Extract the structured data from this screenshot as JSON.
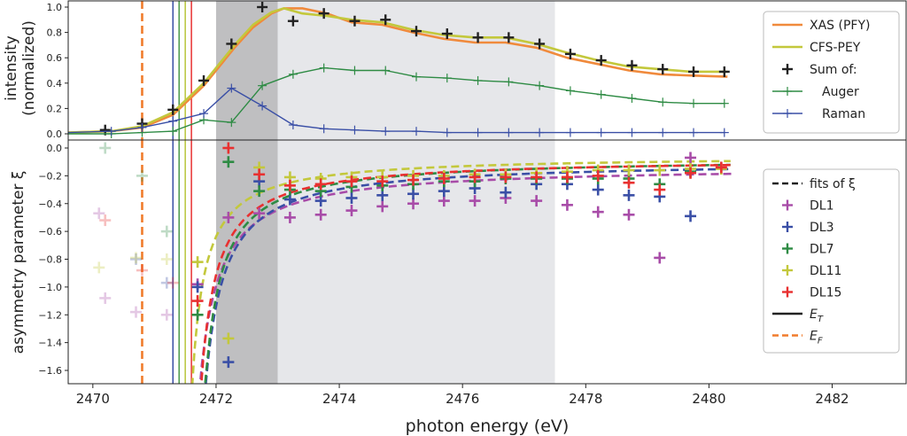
{
  "chart_data": [
    {
      "type": "line",
      "panel": "top",
      "ylabel_line1": "intensity",
      "ylabel_line2": "(normalized)",
      "xlim": [
        2469.6,
        2483.2
      ],
      "ylim": [
        0,
        1.02
      ],
      "yticks": [
        "0.0",
        "0.2",
        "0.4",
        "0.6",
        "0.8",
        "1.0"
      ],
      "ytick_values": [
        0,
        0.2,
        0.4,
        0.6,
        0.8,
        1.0
      ],
      "shaded_regions": [
        {
          "x0": 2472.0,
          "x1": 2473.0,
          "color": "#b4b4b6",
          "opacity": 0.85
        },
        {
          "x0": 2473.0,
          "x1": 2477.5,
          "color": "#e6e7ea",
          "opacity": 1
        }
      ],
      "vlines": [
        {
          "x": 2470.8,
          "color": "#f07c2c",
          "style": "dashed"
        },
        {
          "x": 2471.3,
          "color": "#3a4fa6",
          "style": "solid"
        },
        {
          "x": 2471.4,
          "color": "#4a9a4a",
          "style": "solid"
        },
        {
          "x": 2471.5,
          "color": "#b8c43a",
          "style": "solid"
        },
        {
          "x": 2471.6,
          "color": "#e83030",
          "style": "solid"
        }
      ],
      "series": [
        {
          "name": "XAS (PFY)",
          "color": "#f08a3c",
          "style": "line",
          "x": [
            2469.6,
            2470.3,
            2470.8,
            2471.3,
            2471.8,
            2472.3,
            2472.6,
            2472.9,
            2473.1,
            2473.4,
            2473.8,
            2474.2,
            2474.7,
            2475.2,
            2475.7,
            2476.2,
            2476.7,
            2477.2,
            2477.7,
            2478.2,
            2478.7,
            2479.2,
            2479.7,
            2480.3
          ],
          "y": [
            0.01,
            0.02,
            0.05,
            0.15,
            0.38,
            0.68,
            0.84,
            0.95,
            0.99,
            0.99,
            0.95,
            0.88,
            0.86,
            0.8,
            0.75,
            0.72,
            0.72,
            0.68,
            0.6,
            0.55,
            0.5,
            0.47,
            0.46,
            0.45
          ]
        },
        {
          "name": "CFS-PEY",
          "color": "#c3c83c",
          "style": "line",
          "x": [
            2469.6,
            2470.3,
            2470.8,
            2471.3,
            2471.8,
            2472.3,
            2472.6,
            2472.9,
            2473.1,
            2473.4,
            2473.8,
            2474.2,
            2474.7,
            2475.2,
            2475.7,
            2476.2,
            2476.7,
            2477.2,
            2477.7,
            2478.2,
            2478.7,
            2479.2,
            2479.7,
            2480.3
          ],
          "y": [
            0.01,
            0.02,
            0.06,
            0.17,
            0.4,
            0.7,
            0.86,
            0.96,
            0.99,
            0.95,
            0.93,
            0.9,
            0.88,
            0.82,
            0.78,
            0.76,
            0.76,
            0.71,
            0.64,
            0.58,
            0.53,
            0.51,
            0.49,
            0.49
          ]
        },
        {
          "name": "Sum of:",
          "color": "#222222",
          "style": "plus",
          "x": [
            2470.2,
            2470.8,
            2471.3,
            2471.8,
            2472.25,
            2472.75,
            2473.25,
            2473.75,
            2474.25,
            2474.75,
            2475.25,
            2475.75,
            2476.25,
            2476.75,
            2477.25,
            2477.75,
            2478.25,
            2478.75,
            2479.25,
            2479.75,
            2480.25
          ],
          "y": [
            0.03,
            0.08,
            0.19,
            0.42,
            0.71,
            1.0,
            0.89,
            0.95,
            0.89,
            0.9,
            0.81,
            0.79,
            0.76,
            0.76,
            0.71,
            0.63,
            0.58,
            0.54,
            0.51,
            0.49,
            0.49
          ]
        },
        {
          "name": "Auger",
          "color": "#2e8b44",
          "style": "line-plus",
          "x": [
            2469.6,
            2470.3,
            2470.8,
            2471.3,
            2471.8,
            2472.25,
            2472.75,
            2473.25,
            2473.75,
            2474.25,
            2474.75,
            2475.25,
            2475.75,
            2476.25,
            2476.75,
            2477.25,
            2477.75,
            2478.25,
            2478.75,
            2479.25,
            2479.75,
            2480.25
          ],
          "y": [
            0.0,
            0.0,
            0.01,
            0.02,
            0.11,
            0.09,
            0.38,
            0.47,
            0.52,
            0.5,
            0.5,
            0.45,
            0.44,
            0.42,
            0.41,
            0.38,
            0.34,
            0.31,
            0.28,
            0.25,
            0.24,
            0.24
          ]
        },
        {
          "name": "Raman",
          "color": "#3a4fa6",
          "style": "line-plus",
          "x": [
            2469.6,
            2470.3,
            2470.8,
            2471.3,
            2471.8,
            2472.25,
            2472.75,
            2473.25,
            2473.75,
            2474.25,
            2474.75,
            2475.25,
            2475.75,
            2476.25,
            2476.75,
            2477.25,
            2477.75,
            2478.25,
            2478.75,
            2479.25,
            2479.75,
            2480.25
          ],
          "y": [
            0.01,
            0.02,
            0.05,
            0.1,
            0.16,
            0.36,
            0.22,
            0.07,
            0.04,
            0.03,
            0.02,
            0.02,
            0.01,
            0.01,
            0.01,
            0.01,
            0.01,
            0.01,
            0.01,
            0.01,
            0.01,
            0.01
          ]
        }
      ],
      "legend": {
        "position": "top-right",
        "items": [
          {
            "label": "XAS (PFY)",
            "color": "#f08a3c",
            "kind": "line"
          },
          {
            "label": "CFS-PEY",
            "color": "#c3c83c",
            "kind": "line"
          },
          {
            "label": "Sum of:",
            "color": "#222222",
            "kind": "plus"
          },
          {
            "label": "Auger",
            "color": "#2e8b44",
            "kind": "line-plus"
          },
          {
            "label": "Raman",
            "color": "#3a4fa6",
            "kind": "line-plus"
          }
        ]
      }
    },
    {
      "type": "scatter",
      "panel": "bottom",
      "xlabel": "photon energy (eV)",
      "ylabel": "asymmetry parameter ξ",
      "xlim": [
        2469.6,
        2483.2
      ],
      "ylim": [
        -1.7,
        0.04
      ],
      "xticks": [
        "2470",
        "2472",
        "2474",
        "2476",
        "2478",
        "2480",
        "2482"
      ],
      "xtick_values": [
        2470,
        2472,
        2474,
        2476,
        2478,
        2480,
        2482
      ],
      "yticks": [
        "0.0",
        "−0.2",
        "−0.4",
        "−0.6",
        "−0.8",
        "−1.0",
        "−1.2",
        "−1.4",
        "−1.6"
      ],
      "ytick_values": [
        0,
        -0.2,
        -0.4,
        -0.6,
        -0.8,
        -1.0,
        -1.2,
        -1.4,
        -1.6
      ],
      "shaded_regions": [
        {
          "x0": 2472.0,
          "x1": 2473.0,
          "color": "#b4b4b6",
          "opacity": 0.85
        },
        {
          "x0": 2473.0,
          "x1": 2477.5,
          "color": "#e6e7ea",
          "opacity": 1
        }
      ],
      "vlines": [
        {
          "x": 2470.8,
          "color": "#f07c2c",
          "style": "dashed"
        },
        {
          "x": 2471.3,
          "color": "#3a4fa6",
          "style": "solid"
        },
        {
          "x": 2471.4,
          "color": "#4a9a4a",
          "style": "solid"
        },
        {
          "x": 2471.5,
          "color": "#b8c43a",
          "style": "solid"
        },
        {
          "x": 2471.6,
          "color": "#e83030",
          "style": "solid"
        }
      ],
      "fits": [
        {
          "name": "DL1",
          "color": "#a84ca8",
          "a": -0.13,
          "b": 0.5,
          "x0": 2471.42,
          "xstart": 2471.62
        },
        {
          "name": "DL3",
          "color": "#3a4fa6",
          "a": -0.095,
          "b": 0.5,
          "x0": 2471.52,
          "xstart": 2471.62
        },
        {
          "name": "DL7",
          "color": "#2e8b44",
          "a": -0.07,
          "b": 0.45,
          "x0": 2471.55,
          "xstart": 2471.65
        },
        {
          "name": "DL11",
          "color": "#c3c83c",
          "a": -0.055,
          "b": 0.35,
          "x0": 2471.4,
          "xstart": 2471.6
        },
        {
          "name": "DL15",
          "color": "#e83030",
          "a": -0.075,
          "b": 0.42,
          "x0": 2471.5,
          "xstart": 2471.6
        }
      ],
      "series": [
        {
          "name": "DL1",
          "color": "#a84ca8",
          "x": [
            2470.1,
            2470.2,
            2470.7,
            2471.2,
            2471.7,
            2472.2,
            2472.7,
            2473.2,
            2473.7,
            2474.2,
            2474.7,
            2475.2,
            2475.7,
            2476.2,
            2476.7,
            2477.2,
            2477.7,
            2478.2,
            2478.7,
            2479.2,
            2479.7
          ],
          "y": [
            -0.47,
            -1.08,
            -1.18,
            -1.2,
            -0.98,
            -0.5,
            -0.47,
            -0.5,
            -0.48,
            -0.45,
            -0.42,
            -0.4,
            -0.38,
            -0.38,
            -0.36,
            -0.38,
            -0.41,
            -0.46,
            -0.48,
            -0.79,
            -0.07
          ],
          "faded_count": 4
        },
        {
          "name": "DL3",
          "color": "#3a4fa6",
          "x": [
            2470.7,
            2471.2,
            2471.7,
            2472.2,
            2472.7,
            2473.2,
            2473.7,
            2474.2,
            2474.7,
            2475.2,
            2475.7,
            2476.2,
            2476.7,
            2477.2,
            2477.7,
            2478.2,
            2478.7,
            2479.2,
            2479.7
          ],
          "y": [
            -0.8,
            -0.97,
            -1.0,
            -1.54,
            -0.24,
            -0.37,
            -0.38,
            -0.36,
            -0.34,
            -0.33,
            -0.31,
            -0.29,
            -0.32,
            -0.26,
            -0.26,
            -0.3,
            -0.34,
            -0.35,
            -0.49
          ],
          "faded_count": 2
        },
        {
          "name": "DL7",
          "color": "#2e8b44",
          "x": [
            2470.2,
            2470.8,
            2471.2,
            2471.7,
            2472.2,
            2472.7,
            2473.2,
            2473.7,
            2474.2,
            2474.7,
            2475.2,
            2475.7,
            2476.2,
            2476.7,
            2477.2,
            2477.7,
            2478.2,
            2478.7,
            2479.2,
            2479.7
          ],
          "y": [
            0.0,
            -0.2,
            -0.6,
            -1.2,
            -0.1,
            -0.31,
            -0.3,
            -0.31,
            -0.28,
            -0.27,
            -0.26,
            -0.24,
            -0.24,
            -0.22,
            -0.22,
            -0.22,
            -0.22,
            -0.22,
            -0.26,
            -0.17
          ],
          "faded_count": 3
        },
        {
          "name": "DL11",
          "color": "#c3c83c",
          "x": [
            2470.1,
            2470.7,
            2471.2,
            2471.7,
            2472.2,
            2472.7,
            2473.2,
            2473.7,
            2474.2,
            2474.7,
            2475.2,
            2475.7,
            2476.2,
            2476.7,
            2477.2,
            2477.7,
            2478.2,
            2478.7,
            2479.2,
            2479.7,
            2480.2
          ],
          "y": [
            -0.86,
            -0.79,
            -0.8,
            -0.82,
            -1.37,
            -0.14,
            -0.21,
            -0.22,
            -0.21,
            -0.21,
            -0.2,
            -0.2,
            -0.19,
            -0.19,
            -0.18,
            -0.17,
            -0.16,
            -0.16,
            -0.16,
            -0.15,
            -0.15
          ],
          "faded_count": 3
        },
        {
          "name": "DL15",
          "color": "#e83030",
          "x": [
            2470.2,
            2470.8,
            2471.3,
            2471.7,
            2472.2,
            2472.7,
            2473.2,
            2473.7,
            2474.2,
            2474.7,
            2475.2,
            2475.7,
            2476.2,
            2476.7,
            2477.2,
            2477.7,
            2478.2,
            2478.7,
            2479.2,
            2479.7,
            2480.2
          ],
          "y": [
            -0.52,
            -0.88,
            -0.97,
            -1.1,
            0.0,
            -0.19,
            -0.27,
            -0.26,
            -0.24,
            -0.24,
            -0.23,
            -0.22,
            -0.21,
            -0.21,
            -0.21,
            -0.21,
            -0.2,
            -0.25,
            -0.3,
            -0.18,
            -0.14
          ],
          "faded_count": 3
        }
      ],
      "legend": {
        "position": "right",
        "items": [
          {
            "label": "fits of ξ",
            "color": "#222222",
            "kind": "dashed"
          },
          {
            "label": "DL1",
            "color": "#a84ca8",
            "kind": "plus"
          },
          {
            "label": "DL3",
            "color": "#3a4fa6",
            "kind": "plus"
          },
          {
            "label": "DL7",
            "color": "#2e8b44",
            "kind": "plus"
          },
          {
            "label": "DL11",
            "color": "#c3c83c",
            "kind": "plus"
          },
          {
            "label": "DL15",
            "color": "#e83030",
            "kind": "plus"
          },
          {
            "label": "E",
            "sub": "T",
            "color": "#222222",
            "kind": "line"
          },
          {
            "label": "E",
            "sub": "F",
            "color": "#f07c2c",
            "kind": "orange-dashed"
          }
        ]
      }
    }
  ]
}
